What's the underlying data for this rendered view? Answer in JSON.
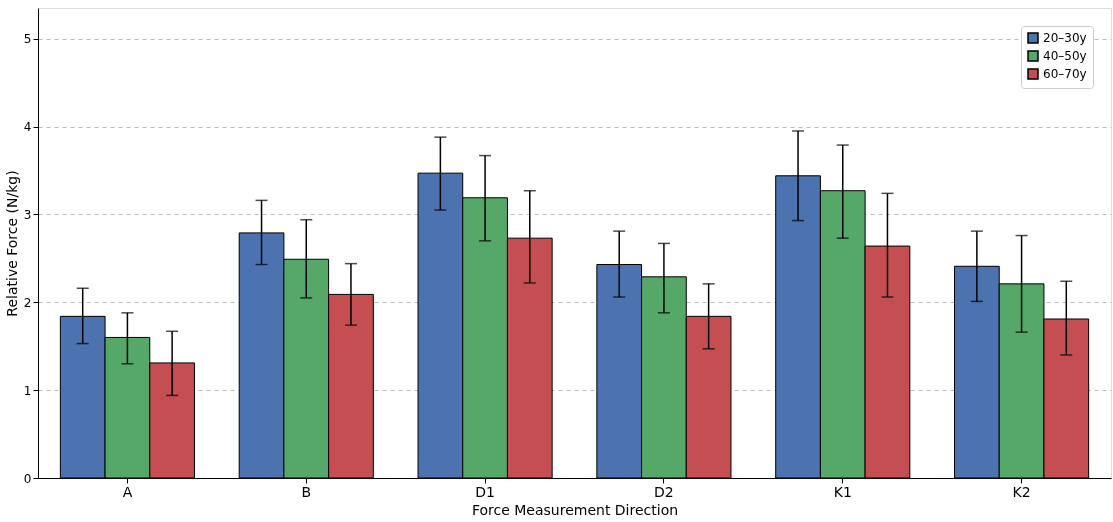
{
  "chart_data": {
    "type": "bar",
    "xlabel": "Force Measurement Direction",
    "ylabel": "Relative Force (N/kg)",
    "categories": [
      "A",
      "B",
      "D1",
      "D2",
      "K1",
      "K2"
    ],
    "series": [
      {
        "name": "20–30y",
        "color": "#4c72b0",
        "values": [
          1.84,
          2.79,
          3.47,
          2.43,
          3.44,
          2.41
        ],
        "errors": [
          [
            1.53,
            2.16
          ],
          [
            2.43,
            3.16
          ],
          [
            3.05,
            3.88
          ],
          [
            2.06,
            2.81
          ],
          [
            2.93,
            3.95
          ],
          [
            2.01,
            2.81
          ]
        ]
      },
      {
        "name": "40–50y",
        "color": "#55a868",
        "values": [
          1.6,
          2.49,
          3.19,
          2.29,
          3.27,
          2.21
        ],
        "errors": [
          [
            1.3,
            1.88
          ],
          [
            2.05,
            2.94
          ],
          [
            2.7,
            3.67
          ],
          [
            1.88,
            2.67
          ],
          [
            2.73,
            3.79
          ],
          [
            1.66,
            2.76
          ]
        ]
      },
      {
        "name": "60–70y",
        "color": "#c44e52",
        "values": [
          1.31,
          2.09,
          2.73,
          1.84,
          2.64,
          1.81
        ],
        "errors": [
          [
            0.94,
            1.67
          ],
          [
            1.74,
            2.44
          ],
          [
            2.22,
            3.27
          ],
          [
            1.47,
            2.21
          ],
          [
            2.06,
            3.24
          ],
          [
            1.4,
            2.24
          ]
        ]
      }
    ],
    "ylim": [
      0,
      5.35
    ],
    "yticks": [
      0,
      1,
      2,
      3,
      4,
      5
    ],
    "grid": "y",
    "legend": "top right"
  }
}
